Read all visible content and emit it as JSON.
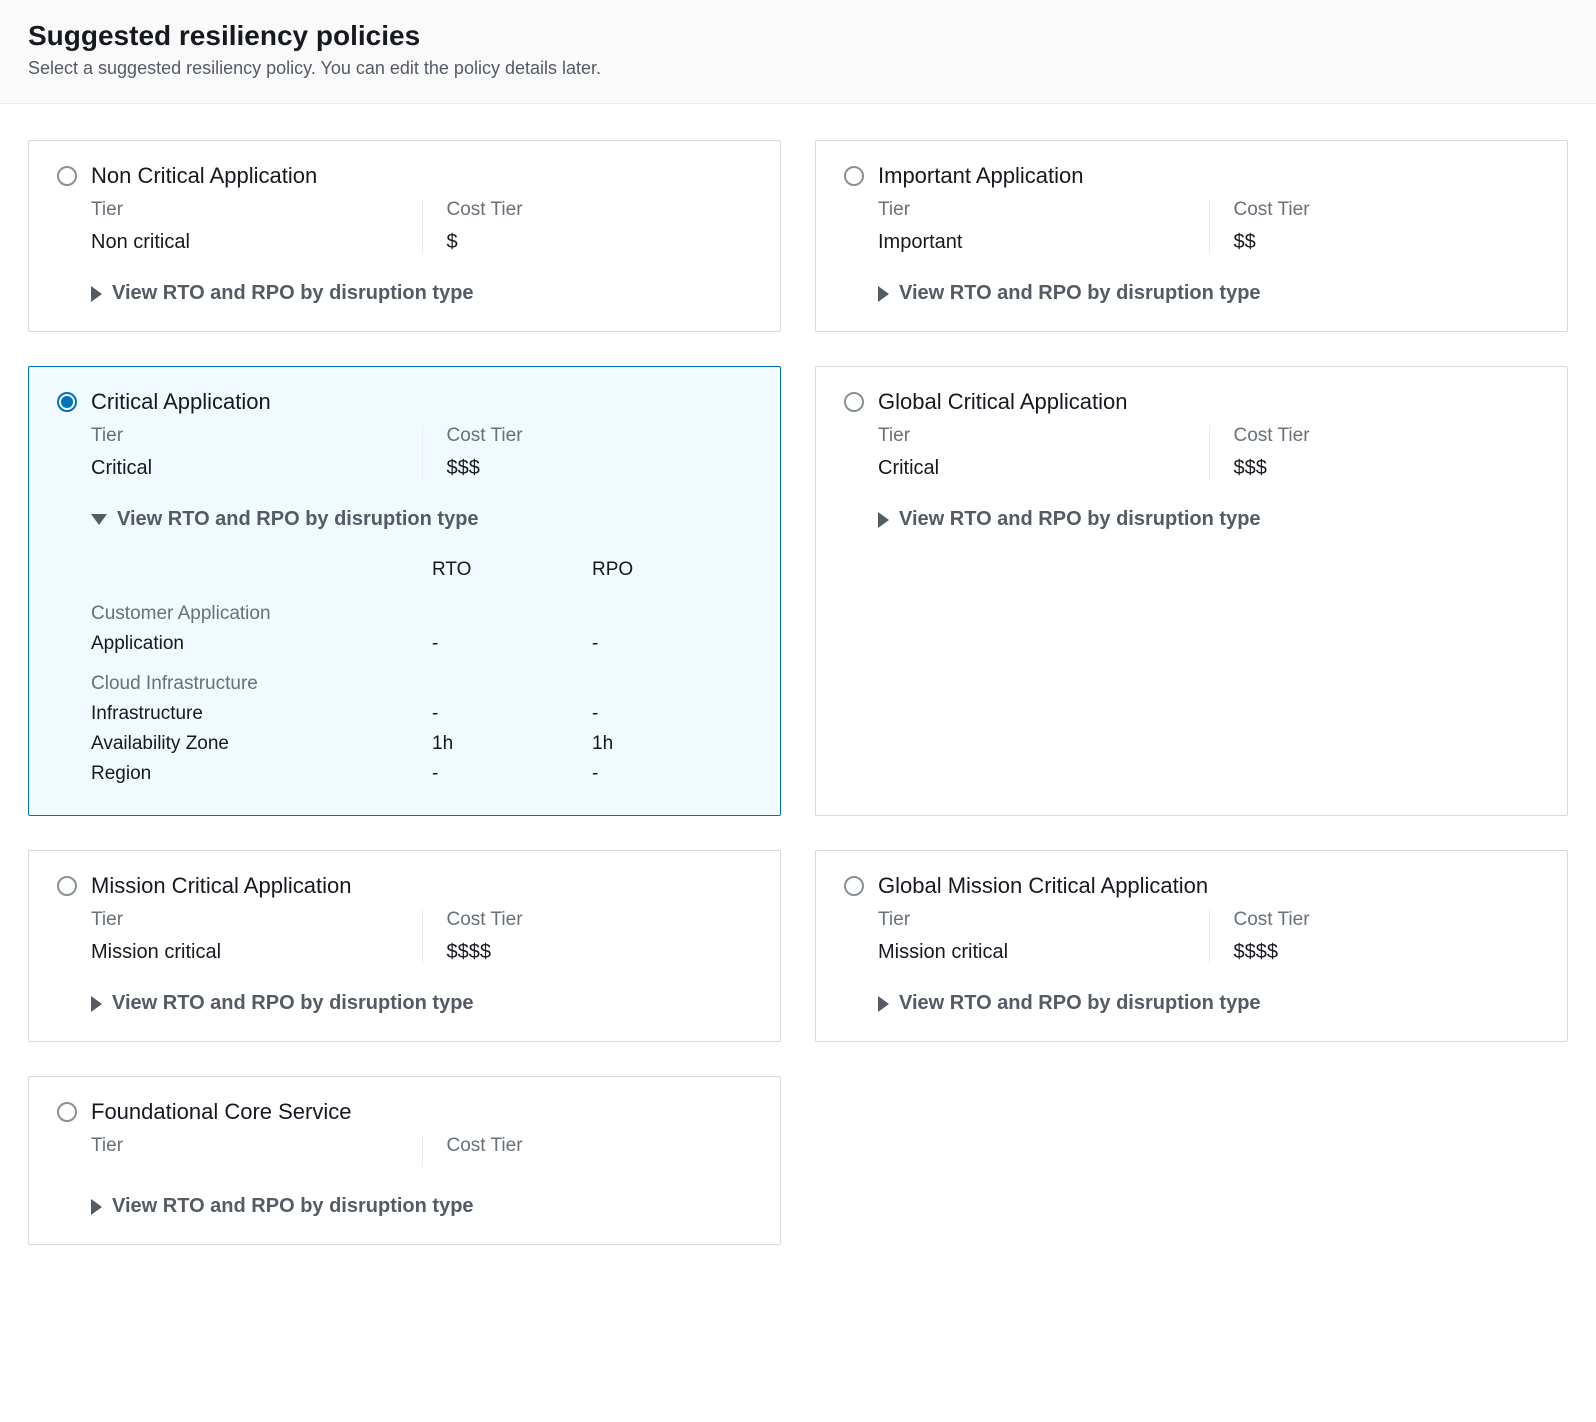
{
  "header": {
    "title": "Suggested resiliency policies",
    "subtitle": "Select a suggested resiliency policy. You can edit the policy details later."
  },
  "labels": {
    "tier": "Tier",
    "cost_tier": "Cost Tier",
    "expand": "View RTO and RPO by disruption type",
    "rto": "RTO",
    "rpo": "RPO"
  },
  "policies": [
    {
      "id": "non-critical",
      "title": "Non Critical Application",
      "tier_value": "Non critical",
      "cost_value": "$",
      "selected": false,
      "expanded": false
    },
    {
      "id": "important",
      "title": "Important Application",
      "tier_value": "Important",
      "cost_value": "$$",
      "selected": false,
      "expanded": false
    },
    {
      "id": "critical",
      "title": "Critical Application",
      "tier_value": "Critical",
      "cost_value": "$$$",
      "selected": true,
      "expanded": true,
      "details": {
        "sections": [
          {
            "label": "Customer Application",
            "rows": [
              {
                "name": "Application",
                "rto": "-",
                "rpo": "-"
              }
            ]
          },
          {
            "label": "Cloud Infrastructure",
            "rows": [
              {
                "name": "Infrastructure",
                "rto": "-",
                "rpo": "-"
              },
              {
                "name": "Availability Zone",
                "rto": "1h",
                "rpo": "1h"
              },
              {
                "name": "Region",
                "rto": "-",
                "rpo": "-"
              }
            ]
          }
        ]
      }
    },
    {
      "id": "global-critical",
      "title": "Global Critical Application",
      "tier_value": "Critical",
      "cost_value": "$$$",
      "selected": false,
      "expanded": false
    },
    {
      "id": "mission-critical",
      "title": "Mission Critical Application",
      "tier_value": "Mission critical",
      "cost_value": "$$$$",
      "selected": false,
      "expanded": false
    },
    {
      "id": "global-mission-critical",
      "title": "Global Mission Critical Application",
      "tier_value": "Mission critical",
      "cost_value": "$$$$",
      "selected": false,
      "expanded": false
    },
    {
      "id": "foundational",
      "title": "Foundational Core Service",
      "tier_value": "",
      "cost_value": "",
      "selected": false,
      "expanded": false
    }
  ],
  "colors": {
    "background": "#ffffff",
    "header_bg": "#fafafa",
    "border": "#d5dbdb",
    "selected_border": "#0073bb",
    "selected_bg": "#f1faff",
    "text_primary": "#16191f",
    "text_secondary": "#687078",
    "expand_text": "#545b64"
  }
}
